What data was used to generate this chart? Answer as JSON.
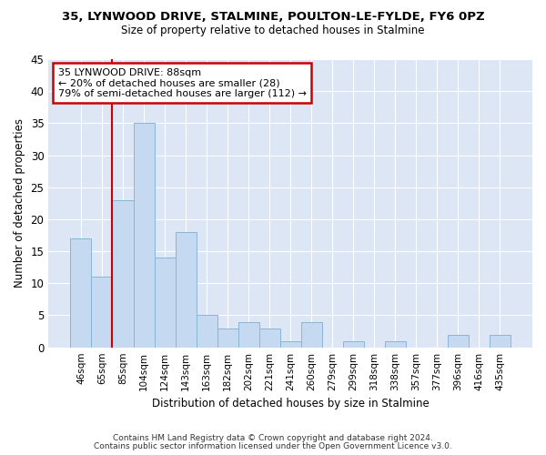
{
  "title1": "35, LYNWOOD DRIVE, STALMINE, POULTON-LE-FYLDE, FY6 0PZ",
  "title2": "Size of property relative to detached houses in Stalmine",
  "xlabel": "Distribution of detached houses by size in Stalmine",
  "ylabel": "Number of detached properties",
  "categories": [
    "46sqm",
    "65sqm",
    "85sqm",
    "104sqm",
    "124sqm",
    "143sqm",
    "163sqm",
    "182sqm",
    "202sqm",
    "221sqm",
    "241sqm",
    "260sqm",
    "279sqm",
    "299sqm",
    "318sqm",
    "338sqm",
    "357sqm",
    "377sqm",
    "396sqm",
    "416sqm",
    "435sqm"
  ],
  "values": [
    17,
    11,
    23,
    35,
    14,
    18,
    5,
    3,
    4,
    3,
    1,
    4,
    0,
    1,
    0,
    1,
    0,
    0,
    2,
    0,
    2
  ],
  "bar_color": "#c5d9f0",
  "bar_edge_color": "#8ab4d8",
  "vline_color": "#cc0000",
  "vline_x": 2,
  "annotation_line1": "35 LYNWOOD DRIVE: 88sqm",
  "annotation_line2": "← 20% of detached houses are smaller (28)",
  "annotation_line3": "79% of semi-detached houses are larger (112) →",
  "annotation_box_color": "#ffffff",
  "annotation_box_edge": "#cc0000",
  "footer1": "Contains HM Land Registry data © Crown copyright and database right 2024.",
  "footer2": "Contains public sector information licensed under the Open Government Licence v3.0.",
  "bg_color": "#ffffff",
  "plot_bg": "#dce6f5",
  "grid_color": "#ffffff",
  "ylim": [
    0,
    45
  ],
  "yticks": [
    0,
    5,
    10,
    15,
    20,
    25,
    30,
    35,
    40,
    45
  ]
}
